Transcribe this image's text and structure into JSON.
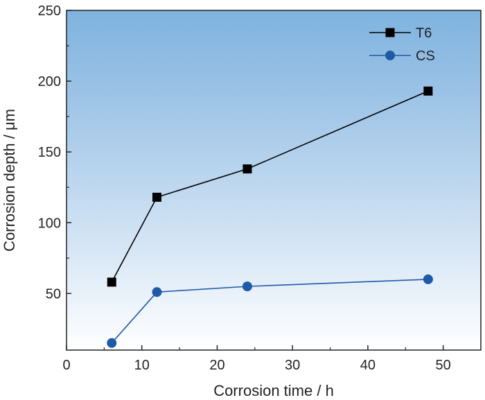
{
  "chart_data": {
    "type": "line",
    "xlabel": "Corrosion time / h",
    "ylabel": "Corrosion depth / μm",
    "xlim": [
      0,
      55
    ],
    "ylim": [
      10,
      250
    ],
    "xticks": [
      0,
      10,
      20,
      30,
      40,
      50
    ],
    "yticks": [
      50,
      100,
      150,
      200,
      250
    ],
    "grid": false,
    "legend_position": "top-right",
    "background": "vertical gradient from blue (top) to white (bottom)",
    "series": [
      {
        "name": "T6",
        "marker": "square",
        "color": "#000000",
        "x": [
          6,
          12,
          24,
          48
        ],
        "y": [
          58,
          118,
          138,
          193
        ]
      },
      {
        "name": "CS",
        "marker": "circle",
        "color": "#1f5aa6",
        "x": [
          6,
          12,
          24,
          48
        ],
        "y": [
          15,
          51,
          55,
          60
        ]
      }
    ]
  }
}
